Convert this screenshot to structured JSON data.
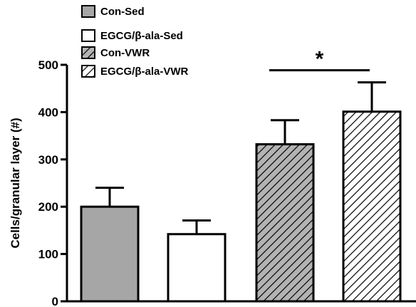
{
  "chart_data": {
    "type": "bar",
    "ylabel": "Cells/granular layer (#)",
    "xlabel": "",
    "ylim": [
      0,
      500
    ],
    "yticks": [
      0,
      100,
      200,
      300,
      400,
      500
    ],
    "grid": false,
    "legend_position": "top-left",
    "series": [
      {
        "name": "Con-Sed",
        "value": 200,
        "error": 40,
        "fill": "gray",
        "color": "#a6a6a6"
      },
      {
        "name": "EGCG/β-ala-Sed",
        "value": 142,
        "error": 29,
        "fill": "white",
        "color": "#ffffff"
      },
      {
        "name": "Con-VWR",
        "value": 332,
        "error": 51,
        "fill": "hatch-on-gray",
        "color": "#b3b3b3"
      },
      {
        "name": "EGCG/β-ala-VWR",
        "value": 401,
        "error": 62,
        "fill": "hatch-on-white",
        "color": "#ffffff"
      }
    ],
    "annotations": [
      {
        "text": "*",
        "from_series": 2,
        "to_series": 3,
        "y": 490
      }
    ]
  }
}
